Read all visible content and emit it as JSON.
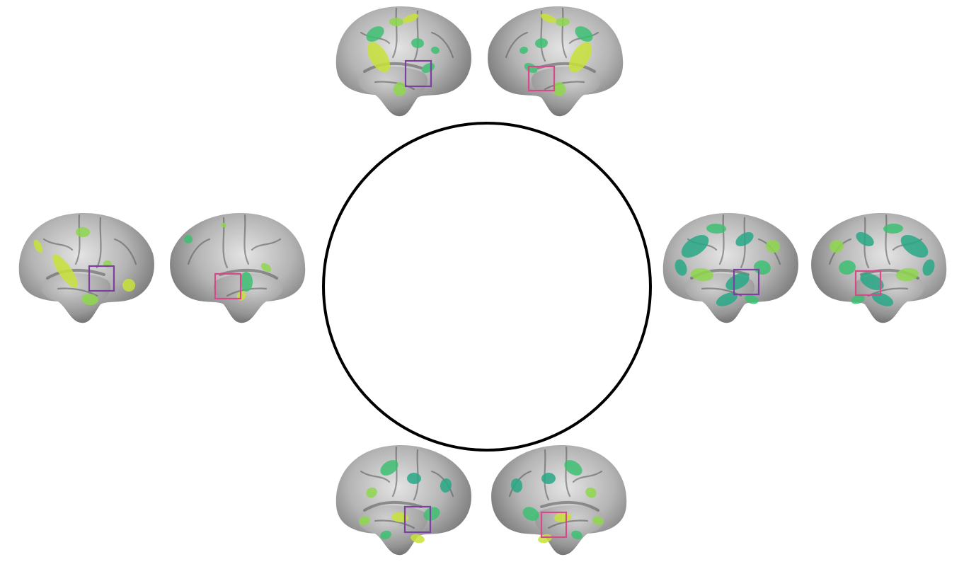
{
  "figure": {
    "background": "#ffffff",
    "center_circle": {
      "stroke": "#000000"
    },
    "colors": {
      "cortex_light": "#dcdcdc",
      "cortex_mid": "#a6a6a6",
      "cortex_dark": "#6e6e6e",
      "sulcus": "#555555",
      "activation_green": "#3dbf72",
      "activation_teal": "#28a887",
      "activation_yellow": "#c9e23a",
      "activation_lime": "#8ed64e",
      "box_left_hemisphere": "#7d3fa0",
      "box_right_hemisphere": "#d64a8b"
    },
    "panels": [
      {
        "id": "top",
        "left_hemisphere": {
          "activation": "mixed",
          "box": "purple"
        },
        "right_hemisphere": {
          "activation": "mixed",
          "box": "pink"
        }
      },
      {
        "id": "left",
        "left_hemisphere": {
          "activation": "yellow",
          "box": "purple"
        },
        "right_hemisphere": {
          "activation": "sparse",
          "box": "pink"
        }
      },
      {
        "id": "right",
        "left_hemisphere": {
          "activation": "teal",
          "box": "purple"
        },
        "right_hemisphere": {
          "activation": "teal",
          "box": "pink"
        }
      },
      {
        "id": "bottom",
        "left_hemisphere": {
          "activation": "green",
          "box": "purple"
        },
        "right_hemisphere": {
          "activation": "green",
          "box": "pink"
        }
      }
    ]
  }
}
